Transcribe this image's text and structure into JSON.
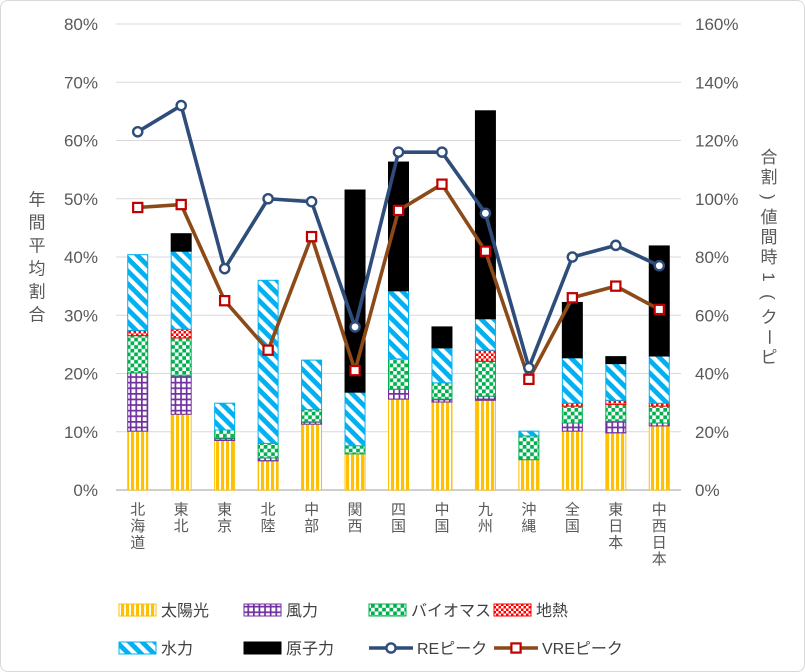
{
  "figure": {
    "left_axis_title": "年間平均割合",
    "right_axis_title": "ピーク(1時間値)割合"
  },
  "chart_data": {
    "type": "bar",
    "subtype": "stacked-bars-with-two-lines",
    "categories": [
      "北海道",
      "東北",
      "東京",
      "北陸",
      "中部",
      "関西",
      "四国",
      "中国",
      "九州",
      "沖縄",
      "全国",
      "東日本",
      "中西日本"
    ],
    "bar_series": [
      {
        "key": "solar",
        "name": "太陽光",
        "axis": "left",
        "color": "#FFC000",
        "pattern": "vertical-stripes",
        "values": [
          10.1,
          13.0,
          8.5,
          5.0,
          11.3,
          6.2,
          15.6,
          15.1,
          15.4,
          5.2,
          10.1,
          9.8,
          11.0
        ]
      },
      {
        "key": "wind",
        "name": "風力",
        "axis": "left",
        "color": "#7030A0",
        "pattern": "grid",
        "values": [
          10.0,
          6.6,
          0.4,
          0.5,
          0.4,
          0.0,
          1.7,
          0.5,
          0.7,
          0.0,
          1.4,
          2.0,
          0.5
        ]
      },
      {
        "key": "biomass",
        "name": "バイオマス",
        "axis": "left",
        "color": "#00B050",
        "pattern": "checker",
        "values": [
          6.4,
          6.5,
          1.4,
          2.5,
          2.1,
          1.4,
          5.2,
          2.8,
          6.0,
          4.1,
          2.9,
          2.9,
          2.9
        ]
      },
      {
        "key": "geothermal",
        "name": "地熱",
        "axis": "left",
        "color": "#FF0000",
        "pattern": "small-checker",
        "values": [
          0.9,
          1.5,
          0.0,
          0.0,
          0.0,
          0.0,
          0.0,
          0.0,
          1.9,
          0.0,
          0.5,
          0.7,
          0.5
        ]
      },
      {
        "key": "hydro",
        "name": "水力",
        "axis": "left",
        "color": "#00B0F0",
        "pattern": "diagonal-stripes",
        "values": [
          13.0,
          13.4,
          4.6,
          28.0,
          8.5,
          9.2,
          11.7,
          6.0,
          5.4,
          0.8,
          7.8,
          6.3,
          8.1
        ]
      },
      {
        "key": "nuclear",
        "name": "原子力",
        "axis": "left",
        "color": "#000000",
        "pattern": "solid",
        "values": [
          0.0,
          3.0,
          0.0,
          0.0,
          0.0,
          34.7,
          22.1,
          3.6,
          35.7,
          0.0,
          9.5,
          1.2,
          18.9
        ]
      }
    ],
    "line_series": [
      {
        "key": "re-peak",
        "name": "REピーク",
        "axis": "right",
        "color": "#2E4D7B",
        "marker": "circle",
        "marker_fill": "#FFFFFF",
        "marker_border": "#2E4D7B",
        "values": [
          123,
          132,
          76,
          100,
          99,
          56,
          116,
          116,
          95,
          42,
          80,
          84,
          77
        ]
      },
      {
        "key": "vre-peak",
        "name": "VREピーク",
        "axis": "right",
        "color": "#8B4A18",
        "marker": "square",
        "marker_fill": "#FFFFFF",
        "marker_border": "#C00000",
        "values": [
          97,
          98,
          65,
          48,
          87,
          41,
          96,
          105,
          82,
          38,
          66,
          70,
          62
        ]
      }
    ],
    "left_axis": {
      "title": "年間平均割合",
      "min": 0,
      "max": 80,
      "step": 10,
      "tick_suffix": "%"
    },
    "right_axis": {
      "title": "ピーク(1時間値)割合",
      "min": 0,
      "max": 160,
      "step": 20,
      "tick_suffix": "%"
    },
    "grid": true,
    "legend_position": "bottom",
    "legend_rows": [
      [
        "太陽光",
        "風力",
        "バイオマス",
        "地熱"
      ],
      [
        "水力",
        "原子力",
        "REピーク",
        "VREピーク"
      ]
    ]
  },
  "style_colors": {
    "gridline": "#D9D9D9",
    "axis_line": "#BFBFBF",
    "tick_label": "#595959",
    "axis_title": "#595959",
    "legend_label": "#404040",
    "card_border": "#D9D9D9"
  }
}
